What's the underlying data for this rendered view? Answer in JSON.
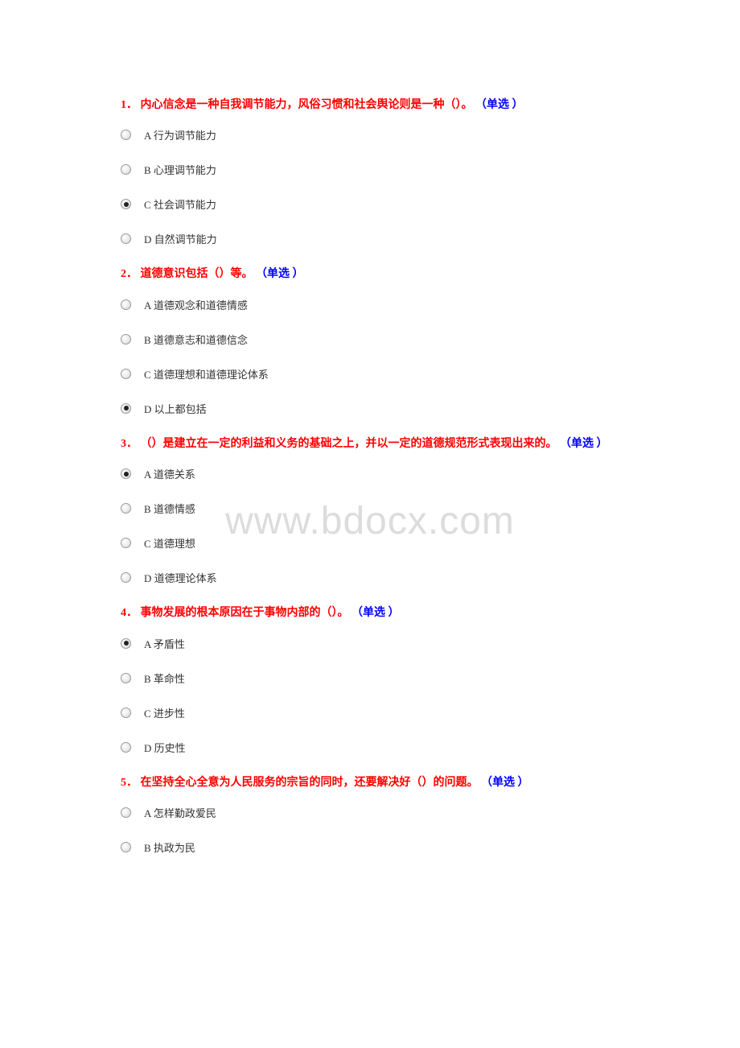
{
  "watermark": "www.bdocx.com",
  "colors": {
    "question_number": "#ff0000",
    "question_body": "#ff0000",
    "question_type": "#0000ff",
    "option_text": "#333333",
    "watermark": "#dcdcdc",
    "background": "#ffffff"
  },
  "fonts": {
    "question_size": 14,
    "option_size": 13,
    "watermark_size": 48
  },
  "questions": [
    {
      "number": "1．",
      "body": "内心信念是一种自我调节能力，风俗习惯和社会舆论则是一种（）。",
      "type": "（单选 ）",
      "options": [
        {
          "label": "A 行为调节能力",
          "selected": false
        },
        {
          "label": "B 心理调节能力",
          "selected": false
        },
        {
          "label": "C 社会调节能力",
          "selected": true
        },
        {
          "label": "D 自然调节能力",
          "selected": false
        }
      ]
    },
    {
      "number": "2．",
      "body": "道德意识包括（）等。",
      "type": "（单选 ）",
      "options": [
        {
          "label": "A 道德观念和道德情感",
          "selected": false
        },
        {
          "label": "B 道德意志和道德信念",
          "selected": false
        },
        {
          "label": "C 道德理想和道德理论体系",
          "selected": false
        },
        {
          "label": "D 以上都包括",
          "selected": true
        }
      ]
    },
    {
      "number": "3．",
      "body": "（）是建立在一定的利益和义务的基础之上，并以一定的道德规范形式表现出来的。",
      "type": "（单选 ）",
      "options": [
        {
          "label": "A 道德关系",
          "selected": true
        },
        {
          "label": "B 道德情感",
          "selected": false
        },
        {
          "label": "C 道德理想",
          "selected": false
        },
        {
          "label": "D 道德理论体系",
          "selected": false
        }
      ]
    },
    {
      "number": "4．",
      "body": "事物发展的根本原因在于事物内部的（）。",
      "type": "（单选 ）",
      "options": [
        {
          "label": "A 矛盾性",
          "selected": true
        },
        {
          "label": "B 革命性",
          "selected": false
        },
        {
          "label": "C 进步性",
          "selected": false
        },
        {
          "label": "D 历史性",
          "selected": false
        }
      ]
    },
    {
      "number": "5．",
      "body": "在坚持全心全意为人民服务的宗旨的同时，还要解决好（）的问题。",
      "type": "（单选 ）",
      "options": [
        {
          "label": "A 怎样勤政爱民",
          "selected": false
        },
        {
          "label": "B 执政为民",
          "selected": false
        }
      ]
    }
  ]
}
